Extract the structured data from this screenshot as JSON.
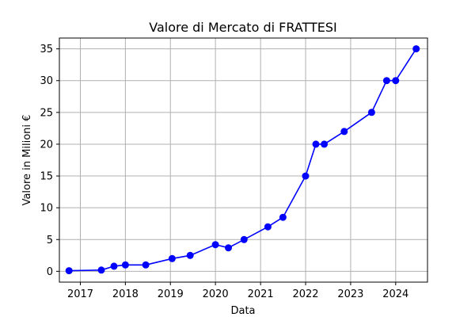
{
  "chart_data": {
    "type": "line",
    "title": "Valore di Mercato di FRATTESI",
    "xlabel": "Data",
    "ylabel": "Valore in Milioni €",
    "x_tick_labels": [
      "2017",
      "2018",
      "2019",
      "2020",
      "2021",
      "2022",
      "2023",
      "2024"
    ],
    "y_ticks": [
      0,
      5,
      10,
      15,
      20,
      25,
      30,
      35
    ],
    "xlim": [
      "2016-07-15",
      "2024-09-15"
    ],
    "ylim": [
      -1.7,
      36.7
    ],
    "grid": true,
    "colors": {
      "line": "#0000ff",
      "marker": "#0000ff",
      "grid": "#b0b0b0"
    },
    "series": [
      {
        "x": [
          "2016-10-01",
          "2017-06-20",
          "2017-10-01",
          "2018-01-01",
          "2018-06-15",
          "2019-01-15",
          "2019-06-10",
          "2020-01-01",
          "2020-04-15",
          "2020-08-20",
          "2021-03-01",
          "2021-07-01",
          "2022-01-01",
          "2022-03-25",
          "2022-06-01",
          "2022-11-10",
          "2023-06-20",
          "2023-10-20",
          "2024-01-01",
          "2024-06-15"
        ],
        "y": [
          0.1,
          0.2,
          0.8,
          1.0,
          1.0,
          2.0,
          2.5,
          4.2,
          3.7,
          5.0,
          7.0,
          8.5,
          15.0,
          20.0,
          20.0,
          22.0,
          25.0,
          30.0,
          30.0,
          35.0
        ]
      }
    ]
  }
}
